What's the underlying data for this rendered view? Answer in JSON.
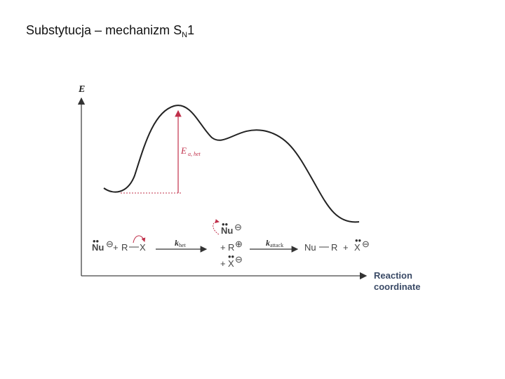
{
  "title": {
    "text": "Substytucja – mechanizm S",
    "subscript": "N",
    "suffix": "1"
  },
  "axes": {
    "y_label": "E",
    "x_label_line1": "Reaction",
    "x_label_line2": "coordinate"
  },
  "activation": {
    "symbol": "E",
    "subscript": "a, het"
  },
  "reaction": {
    "nucleophile": "Nu",
    "plus": "+",
    "substrate_r": "R",
    "substrate_x": "X",
    "rate1_symbol": "k",
    "rate1_sub": "het",
    "rate2_symbol": "k",
    "rate2_sub": "attack",
    "intermediate_nu": "Nu",
    "intermediate_r": "R",
    "intermediate_x": "X",
    "product_nu": "Nu",
    "product_r": "R",
    "product_x": "X",
    "anion_charge": "⊖",
    "cation_charge": "⊕"
  },
  "colors": {
    "curve": "#222222",
    "activation_line": "#c0304a",
    "axis": "#444444"
  }
}
